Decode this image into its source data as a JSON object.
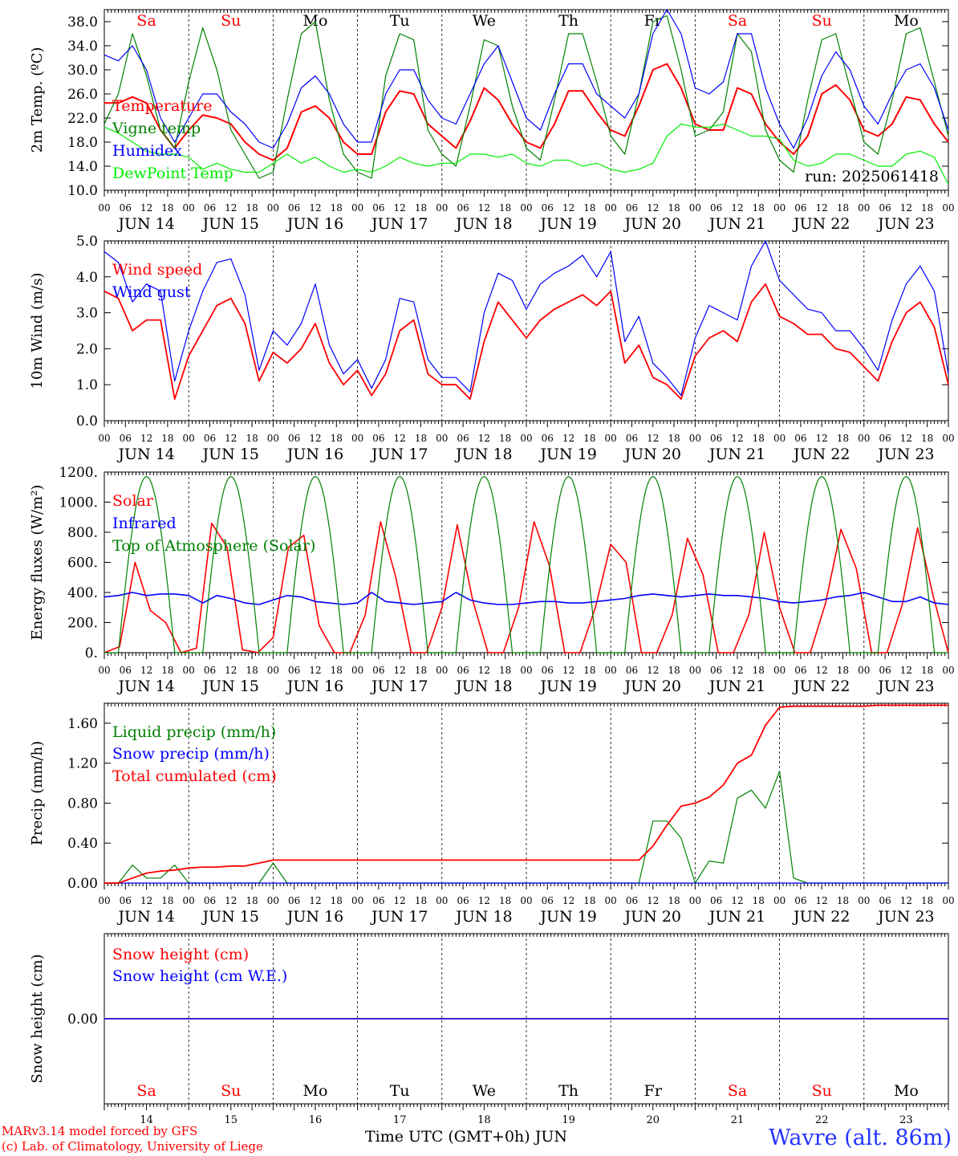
{
  "chart_data": {
    "type": "line",
    "days": [
      "Sa",
      "Su",
      "Mo",
      "Tu",
      "We",
      "Th",
      "Fr",
      "Sa",
      "Su",
      "Mo"
    ],
    "day_colors": [
      "#ff0000",
      "#ff0000",
      "#000000",
      "#000000",
      "#000000",
      "#000000",
      "#000000",
      "#ff0000",
      "#ff0000",
      "#000000"
    ],
    "dates": [
      "JUN 14",
      "JUN 15",
      "JUN 16",
      "JUN 17",
      "JUN 18",
      "JUN 19",
      "JUN 20",
      "JUN 21",
      "JUN 22",
      "JUN 23"
    ],
    "date_numbers": [
      "14",
      "15",
      "16",
      "17",
      "18",
      "19",
      "20",
      "21",
      "22",
      "23"
    ],
    "hour_ticks": [
      "00",
      "06",
      "12",
      "18"
    ],
    "final_hour_tick": "00",
    "x_step_hours": 6,
    "panels": [
      {
        "id": "temperature",
        "ylabel": "2m Temp. (ºC)",
        "ylim": [
          10,
          40
        ],
        "yticks": [
          "10.0",
          "14.0",
          "18.0",
          "22.0",
          "26.0",
          "30.0",
          "34.0",
          "38.0"
        ],
        "ytick_values": [
          10,
          14,
          18,
          22,
          26,
          30,
          34,
          38
        ],
        "show_days": true,
        "annotation": "run: 2025061418",
        "series": [
          {
            "name": "Temperature",
            "color": "#ff0000",
            "width": 2,
            "values": [
              24.5,
              24.5,
              25.5,
              24.5,
              20,
              17,
              20,
              22.5,
              22,
              21,
              18,
              16,
              15,
              17,
              23,
              24,
              22,
              18,
              16,
              16,
              23,
              26.5,
              26,
              21,
              19,
              17,
              21.5,
              27,
              25,
              21,
              18,
              17,
              21,
              26.5,
              26.5,
              23,
              20,
              19,
              24,
              30,
              31,
              27,
              21,
              20,
              20,
              27,
              26,
              21,
              18,
              16,
              19,
              26,
              27.5,
              25,
              20,
              19,
              21,
              25.5,
              25,
              21,
              18
            ]
          },
          {
            "name": "Vigne temp",
            "color": "#008000",
            "width": 1.2,
            "values": [
              21,
              26,
              36,
              29,
              20,
              17,
              28,
              37,
              30,
              20,
              16,
              12,
              13,
              25,
              36,
              38,
              25,
              16,
              13,
              12,
              29,
              36,
              35,
              20,
              16,
              14,
              24,
              35,
              34,
              24,
              17,
              15,
              25,
              36,
              36,
              28,
              19,
              16,
              26,
              38,
              39,
              30,
              19,
              20,
              23,
              36,
              33,
              20,
              15,
              13,
              25,
              35,
              36,
              27,
              18,
              16,
              25,
              36,
              37,
              28,
              19
            ]
          },
          {
            "name": "Humidex",
            "color": "#0000ff",
            "width": 1.2,
            "values": [
              32.5,
              31.5,
              34,
              30,
              22,
              18,
              22,
              26,
              26,
              23,
              21,
              18,
              17,
              21,
              27,
              29,
              26,
              21,
              18,
              18,
              26,
              30,
              30,
              25,
              22,
              21,
              26,
              31,
              34,
              28,
              22,
              20,
              26,
              31,
              31,
              26,
              24,
              22,
              26,
              36,
              40,
              36,
              27,
              26,
              28,
              36,
              36,
              27,
              21,
              17,
              22,
              29,
              33,
              30,
              24,
              21,
              26,
              30,
              31,
              27,
              20
            ]
          },
          {
            "name": "DewPoint Temp",
            "color": "#00ee00",
            "width": 1.2,
            "values": [
              20.5,
              19.5,
              18,
              16.5,
              16,
              16,
              15.5,
              13.5,
              14.5,
              13.5,
              13,
              13,
              14.5,
              16,
              14.5,
              15.5,
              14,
              13,
              13.5,
              13,
              14,
              15.5,
              14.5,
              14,
              14.5,
              14.5,
              16,
              16,
              15.5,
              16,
              14.5,
              14,
              15,
              15,
              14,
              14.5,
              13.5,
              13,
              13.5,
              14.5,
              19,
              21,
              20.5,
              20.5,
              21,
              20,
              19,
              19,
              18.5,
              15,
              14,
              14.5,
              16,
              16,
              15,
              14,
              14,
              16,
              16.5,
              15.5,
              11
            ]
          }
        ]
      },
      {
        "id": "wind",
        "ylabel": "10m Wind (m/s)",
        "ylim": [
          0,
          5
        ],
        "yticks": [
          "0.0",
          "1.0",
          "2.0",
          "3.0",
          "4.0",
          "5.0"
        ],
        "ytick_values": [
          0,
          1,
          2,
          3,
          4,
          5
        ],
        "show_days": false,
        "series": [
          {
            "name": "Wind speed",
            "color": "#ff0000",
            "width": 1.8,
            "values": [
              3.6,
              3.4,
              2.5,
              2.8,
              2.8,
              0.6,
              1.8,
              2.5,
              3.2,
              3.4,
              2.7,
              1.1,
              1.9,
              1.6,
              2,
              2.7,
              1.6,
              1,
              1.4,
              0.7,
              1.3,
              2.5,
              2.8,
              1.3,
              1,
              1,
              0.6,
              2.2,
              3.3,
              2.8,
              2.3,
              2.8,
              3.1,
              3.3,
              3.5,
              3.2,
              3.6,
              1.6,
              2.1,
              1.2,
              1,
              0.6,
              1.8,
              2.3,
              2.5,
              2.2,
              3.3,
              3.8,
              2.9,
              2.7,
              2.4,
              2.4,
              2,
              1.9,
              1.5,
              1.1,
              2.2,
              3,
              3.3,
              2.6,
              1
            ]
          },
          {
            "name": "Wind gust",
            "color": "#0000ff",
            "width": 1.2,
            "values": [
              4.7,
              4.4,
              3.3,
              3.8,
              3.6,
              1.1,
              2.5,
              3.6,
              4.4,
              4.5,
              3.5,
              1.4,
              2.5,
              2.1,
              2.7,
              3.8,
              2.1,
              1.3,
              1.7,
              0.9,
              1.7,
              3.4,
              3.3,
              1.7,
              1.2,
              1.2,
              0.8,
              3,
              4.1,
              3.9,
              3.1,
              3.8,
              4.1,
              4.3,
              4.6,
              4,
              4.7,
              2.2,
              2.9,
              1.6,
              1.2,
              0.7,
              2.3,
              3.2,
              3,
              2.8,
              4.3,
              5,
              3.9,
              3.5,
              3.1,
              3,
              2.5,
              2.5,
              2,
              1.4,
              2.8,
              3.8,
              4.3,
              3.6,
              1.3
            ]
          }
        ]
      },
      {
        "id": "energy",
        "ylabel": "Energy fluxes (W/m²)",
        "ylim": [
          0,
          1200
        ],
        "yticks": [
          "0.",
          "200.",
          "400.",
          "600.",
          "800.",
          "1000.",
          "1200."
        ],
        "ytick_values": [
          0,
          200,
          400,
          600,
          800,
          1000,
          1200
        ],
        "show_days": false,
        "series": [
          {
            "name": "Solar",
            "color": "#ff0000",
            "width": 1.6,
            "values": [
              0,
              40,
              600,
              280,
              200,
              0,
              30,
              860,
              700,
              20,
              0,
              100,
              700,
              780,
              180,
              0,
              0,
              250,
              870,
              500,
              0,
              0,
              300,
              850,
              350,
              0,
              0,
              300,
              870,
              580,
              0,
              0,
              300,
              720,
              600,
              0,
              0,
              250,
              760,
              520,
              0,
              0,
              250,
              800,
              300,
              0,
              0,
              330,
              820,
              560,
              0,
              0,
              320,
              830,
              380,
              0
            ]
          },
          {
            "name": "Infrared",
            "color": "#0000ff",
            "width": 1.6,
            "values": [
              370,
              380,
              400,
              380,
              390,
              390,
              380,
              330,
              380,
              360,
              330,
              320,
              350,
              380,
              370,
              340,
              330,
              320,
              330,
              400,
              340,
              330,
              320,
              330,
              340,
              400,
              350,
              330,
              320,
              320,
              330,
              340,
              340,
              330,
              330,
              340,
              350,
              360,
              380,
              390,
              380,
              370,
              380,
              390,
              380,
              380,
              370,
              360,
              340,
              330,
              340,
              350,
              370,
              380,
              400,
              370,
              340,
              340,
              370,
              330,
              320
            ]
          },
          {
            "name": "Top of Atmosphere (Solar)",
            "color": "#008000",
            "width": 1.2,
            "period_hours": 24,
            "peak": 1170,
            "start_hour": 4,
            "end_hour": 20
          }
        ]
      },
      {
        "id": "precip",
        "ylabel": "Precip (mm/h)",
        "ylim": [
          0,
          1.8
        ],
        "yticks": [
          "0.00",
          "0.40",
          "0.80",
          "1.20",
          "1.60"
        ],
        "ytick_values": [
          0,
          0.4,
          0.8,
          1.2,
          1.6
        ],
        "show_days": false,
        "series": [
          {
            "name": "Liquid precip (mm/h)",
            "color": "#008000",
            "width": 1.2,
            "values": [
              0,
              0,
              0.18,
              0.05,
              0.05,
              0.18,
              0,
              0,
              0,
              0,
              0,
              0,
              0.2,
              0,
              0,
              0,
              0,
              0,
              0,
              0,
              0,
              0,
              0,
              0,
              0,
              0,
              0,
              0,
              0,
              0,
              0,
              0,
              0,
              0,
              0,
              0,
              0,
              0,
              0,
              0.62,
              0.62,
              0.45,
              0,
              0.22,
              0.2,
              0.85,
              0.93,
              0.75,
              1.12,
              0.05,
              0,
              0,
              0,
              0,
              0,
              0,
              0,
              0,
              0,
              0,
              0
            ]
          },
          {
            "name": "Snow precip (mm/h)",
            "color": "#0000ff",
            "width": 1.2,
            "values": [
              0,
              0,
              0,
              0,
              0,
              0,
              0,
              0,
              0,
              0,
              0,
              0,
              0,
              0,
              0,
              0,
              0,
              0,
              0,
              0,
              0,
              0,
              0,
              0,
              0,
              0,
              0,
              0,
              0,
              0,
              0,
              0,
              0,
              0,
              0,
              0,
              0,
              0,
              0,
              0,
              0,
              0,
              0,
              0,
              0,
              0,
              0,
              0,
              0,
              0,
              0,
              0,
              0,
              0,
              0,
              0,
              0,
              0,
              0,
              0,
              0
            ]
          },
          {
            "name": "Total cumulated (cm)",
            "color": "#ff0000",
            "width": 1.8,
            "values": [
              0,
              0,
              0.05,
              0.1,
              0.12,
              0.13,
              0.15,
              0.16,
              0.16,
              0.17,
              0.17,
              0.2,
              0.23,
              0.23,
              0.23,
              0.23,
              0.23,
              0.23,
              0.23,
              0.23,
              0.23,
              0.23,
              0.23,
              0.23,
              0.23,
              0.23,
              0.23,
              0.23,
              0.23,
              0.23,
              0.23,
              0.23,
              0.23,
              0.23,
              0.23,
              0.23,
              0.23,
              0.23,
              0.23,
              0.37,
              0.58,
              0.77,
              0.8,
              0.86,
              0.98,
              1.2,
              1.28,
              1.58,
              1.76,
              1.77,
              1.77,
              1.77,
              1.77,
              1.77,
              1.77,
              1.78,
              1.78,
              1.78,
              1.78,
              1.78,
              1.78
            ]
          }
        ]
      },
      {
        "id": "snow",
        "ylabel": "Snow height (cm)",
        "ylim": [
          -1,
          1
        ],
        "yticks": [
          "0.00"
        ],
        "ytick_values": [
          0
        ],
        "show_days": true,
        "series": [
          {
            "name": "Snow height (cm)",
            "color": "#ff0000",
            "width": 1.5,
            "values": [
              0,
              0
            ]
          },
          {
            "name": "Snow height (cm W.E.)",
            "color": "#0000ff",
            "width": 1.5,
            "values": [
              0,
              0
            ]
          }
        ]
      }
    ]
  },
  "footer": {
    "xlabel": "Time UTC (GMT+0h)",
    "month": "JUN",
    "credit_line1": "MARv3.14 model forced by GFS",
    "credit_line2": "(c) Lab. of Climatology, University of Liege",
    "station": "Wavre (alt. 86m)"
  }
}
